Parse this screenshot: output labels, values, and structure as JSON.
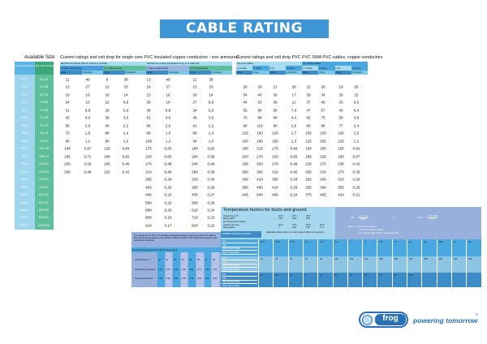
{
  "title": "CABLE RATING CHART",
  "available": {
    "title": "Available Size",
    "col1_header": "Cross Sectional Area (mm²)",
    "col2_header": "Max Size and Strand",
    "sizes": [
      "1,0",
      "1,5",
      "2,5",
      "4,0",
      "6,0",
      "10,0",
      "16,0",
      "25,0",
      "35,0",
      "50,0",
      "70,0",
      "95,0",
      "120,0",
      "150,0",
      "185,0",
      "240,0",
      "300,0",
      "400,0",
      "500,0",
      "630,0"
    ],
    "strands": [
      "1/1.13",
      "1/1.38",
      "1/1.78",
      "7/0.85",
      "7/1.04",
      "7/1.35",
      "7/1.70",
      "7/2.14",
      "7/2.52",
      "19/1.78",
      "19/2.14",
      "19/2.52",
      "37/2.03",
      "37/2.25",
      "37/2.52",
      "61/2.25",
      "61/2.52",
      "61/2.85",
      "61/3.20",
      "127/2.52"
    ]
  },
  "single_core": {
    "title": "Current ratings and volt drop for single core PVC insulated copper conductors - non armoured",
    "group_headers": [
      "Bunched and clipped direct to surface or touching",
      "Spaced from surface and clipped to tray or on cable tray"
    ],
    "sub_headers": [
      "2 Cables Single Phase",
      "3 or 4 Single-phase",
      "2 Cables Single Phase",
      "3 or 4 Single-phase"
    ],
    "units": [
      "Amps",
      "mV/Amp/m",
      "Amps",
      "mV/Amp/m",
      "Amps",
      "mV/Amp/m",
      "Amps",
      "mV/Amp/m"
    ],
    "rows": [
      [
        "11",
        "40",
        "9",
        "38",
        "13",
        "40",
        "12",
        "38"
      ],
      [
        "13",
        "27",
        "12",
        "23",
        "16",
        "27",
        "15",
        "23"
      ],
      [
        "18",
        "16",
        "16",
        "14",
        "23",
        "16",
        "20",
        "14"
      ],
      [
        "24",
        "10",
        "22",
        "8,8",
        "30",
        "10",
        "27",
        "8,8"
      ],
      [
        "31",
        "6,8",
        "29",
        "5,9",
        "38",
        "6,8",
        "34",
        "5,9"
      ],
      [
        "42",
        "4,0",
        "39",
        "3,5",
        "51",
        "4,0",
        "46",
        "3,5"
      ],
      [
        "56",
        "2,6",
        "60",
        "2,2",
        "68",
        "2,6",
        "61",
        "2,2"
      ],
      [
        "73",
        "1,6",
        "68",
        "1,4",
        "89",
        "1,6",
        "80",
        "1,4"
      ],
      [
        "90",
        "1,2",
        "80",
        "1,0",
        "109",
        "1,2",
        "99",
        "1,0"
      ],
      [
        "145",
        "0,87",
        "125",
        "0,84",
        "175",
        "0,83",
        "160",
        "0,82"
      ],
      [
        "185",
        "0,71",
        "160",
        "0,62",
        "220",
        "0,65",
        "200",
        "0,59"
      ],
      [
        "230",
        "0,55",
        "195",
        "0,46",
        "270",
        "0,48",
        "240",
        "0,45"
      ],
      [
        "260",
        "0,48",
        "220",
        "0,42",
        "310",
        "0,40",
        "280",
        "0,38"
      ],
      [
        "",
        "",
        "",
        "",
        "355",
        "0,34",
        "320",
        "0,34"
      ],
      [
        "",
        "",
        "",
        "",
        "405",
        "0,29",
        "365",
        "0,30"
      ],
      [
        "",
        "",
        "",
        "",
        "480",
        "0,24",
        "430",
        "0,27"
      ],
      [
        "",
        "",
        "",
        "",
        "560",
        "0,22",
        "500",
        "0,26"
      ],
      [
        "",
        "",
        "",
        "",
        "680",
        "0,20",
        "610",
        "0,24"
      ],
      [
        "",
        "",
        "",
        "",
        "800",
        "0,19",
        "710",
        "0,23"
      ],
      [
        "",
        "",
        "",
        "",
        "910",
        "0,17",
        "820",
        "0,22"
      ]
    ]
  },
  "swa": {
    "title": "Current ratings and volt drop PVC PVC SWA PVC cables, copper conductors",
    "group_headers": [
      "Two Core Cables",
      "3 or 4 Core Cables"
    ],
    "sub_headers": [
      "In Conduit",
      "In Direct",
      "In Air",
      "Volt Drop",
      "In Conduit",
      "In Direct",
      "In Air",
      "Volt Drop"
    ],
    "units": [
      "Amps",
      "Amps",
      "Amps",
      "mV/Amp/m",
      "Amps",
      "Amps",
      "Amps",
      "mV/Amp/m"
    ],
    "rows": [
      [
        "26",
        "30",
        "21",
        "28",
        "22",
        "26",
        "19",
        "25"
      ],
      [
        "34",
        "40",
        "30",
        "17",
        "29",
        "34",
        "26",
        "15"
      ],
      [
        "44",
        "53",
        "39",
        "11",
        "37",
        "45",
        "33",
        "9,5"
      ],
      [
        "55",
        "66",
        "50",
        "7,4",
        "47",
        "57",
        "43",
        "6,4"
      ],
      [
        "73",
        "88",
        "69",
        "4,4",
        "62",
        "75",
        "59",
        "3,8"
      ],
      [
        "96",
        "116",
        "90",
        "2,8",
        "80",
        "98",
        "77",
        "2,4"
      ],
      [
        "125",
        "150",
        "120",
        "1,7",
        "105",
        "130",
        "100",
        "1,5"
      ],
      [
        "150",
        "185",
        "150",
        "1,3",
        "125",
        "155",
        "125",
        "1,1"
      ],
      [
        "180",
        "215",
        "175",
        "0,94",
        "150",
        "185",
        "155",
        "0,82"
      ],
      [
        "220",
        "270",
        "220",
        "0,65",
        "185",
        "225",
        "190",
        "0,57"
      ],
      [
        "265",
        "320",
        "270",
        "0,49",
        "225",
        "270",
        "235",
        "0,42"
      ],
      [
        "300",
        "365",
        "310",
        "0,40",
        "255",
        "310",
        "270",
        "0,35"
      ],
      [
        "340",
        "410",
        "355",
        "0,34",
        "292",
        "345",
        "310",
        "0,29"
      ],
      [
        "385",
        "465",
        "410",
        "0,29",
        "325",
        "390",
        "355",
        "0,25"
      ],
      [
        "445",
        "540",
        "485",
        "0,24",
        "375",
        "465",
        "420",
        "0,21"
      ]
    ]
  },
  "temperature": {
    "title": "Temperature factors for ducts and ground",
    "lines": [
      "Ground temp °C",
      "Rating factor",
      "Air Temperature Factors",
      "Ambient air temp",
      "Rating factor"
    ],
    "row1": [
      "20°C",
      "25°C",
      "30°C"
    ],
    "row1_factors": [
      "0.95",
      "0.90",
      "0.85"
    ],
    "row2": [
      "30°C",
      "35°C",
      "40°C",
      "45°C"
    ],
    "row2_factors": [
      "1",
      "0.94",
      "0.87",
      "0.77"
    ],
    "band_label": "CURRENT RATING FACTORS",
    "band_note": "Applicable where cable is in a duct placed direct in the ground"
  },
  "formula": {
    "lhs1": "Vd=",
    "frac1_num": "mV x I x L",
    "frac1_den": "1000",
    "or": "or",
    "lhs2": "Imax=",
    "frac2_num": "Vd x 1000",
    "frac2_den": "I x L",
    "where": [
      "Where: I = Current in Amperes",
      "L = Route length in metres",
      "mV = Appropriate mV/A/m drop/amp/metre"
    ]
  },
  "ambient": {
    "note": "The ratings are for 30°C. The ambient temperature factors apply only where the cable is from overcurrent protection. For cables of different ambient, the rating factors apply to the overcurrent protection.",
    "title": "Current Rating Factors for Ambient Temperature",
    "row_labels": [
      "Ambient temp °C",
      "Overcurrent protection",
      "Overload protection"
    ],
    "temps": [
      "25",
      "30",
      "35",
      "40",
      "45",
      "50",
      "55",
      "60"
    ],
    "overcurrent": [
      "1.03",
      "0.97",
      "0.94",
      "0.90",
      "0.86",
      "0.77",
      "0.63",
      "0.45"
    ],
    "overload": [
      "1.06",
      "0.94",
      "0.87",
      "0.79",
      "0.71",
      "0.61",
      "0.50",
      "0.35"
    ]
  },
  "motor_grid": {
    "labels": [
      "kW",
      "kVA",
      "230v Single Phase",
      "400v Three Phase"
    ],
    "bands": [
      [
        "0.37",
        "0.55",
        "0.75",
        "1.1",
        "1.5",
        "2.2",
        "3",
        "4",
        "5.5",
        "7.5",
        "11",
        "15",
        "18.5",
        "22",
        "30"
      ],
      [
        "37",
        "45",
        "55",
        "75",
        "90",
        "110",
        "132",
        "160",
        "200",
        "250",
        "315",
        "355",
        "400",
        "450",
        "500"
      ],
      [
        "7.1",
        "9.6",
        "13",
        "17",
        "24",
        "32",
        "43",
        "59",
        "79",
        "96",
        "120",
        "",
        "",
        "",
        ""
      ]
    ]
  },
  "logo": {
    "brand": "frog",
    "sub": "CABLES",
    "tagline": "powering tomorrow",
    "reg": "®",
    "color": "#2a6fb8"
  }
}
